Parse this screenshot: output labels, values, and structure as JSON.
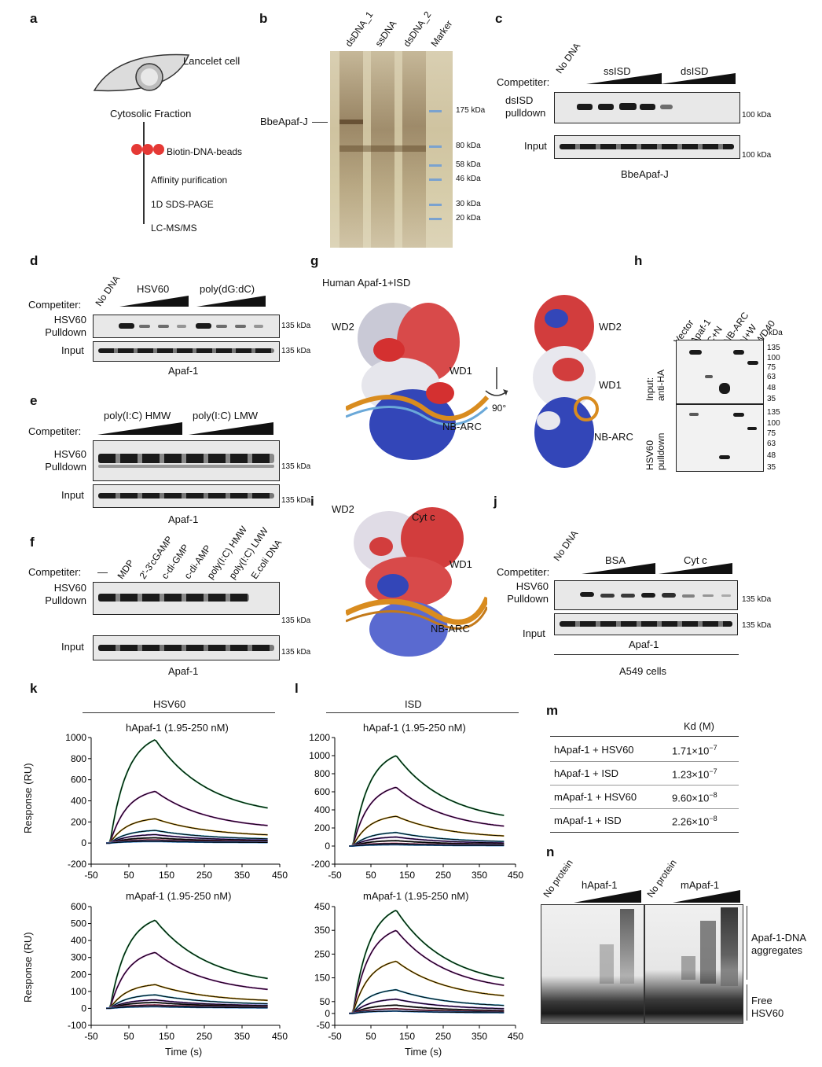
{
  "panels": {
    "a": "a",
    "b": "b",
    "c": "c",
    "d": "d",
    "e": "e",
    "f": "f",
    "g": "g",
    "h": "h",
    "i": "i",
    "j": "j",
    "k": "k",
    "l": "l",
    "m": "m",
    "n": "n"
  },
  "a": {
    "cell_label": "Lancelet cell",
    "fraction": "Cytosolic Fraction",
    "beads": "Biotin-DNA-beads",
    "step1": "Affinity purification",
    "step2": "1D SDS-PAGE",
    "step3": "LC-MS/MS"
  },
  "b": {
    "lanes": [
      "dsDNA_1",
      "ssDNA",
      "dsDNA_2",
      "Marker"
    ],
    "protein": "BbeApaf-J",
    "markers": [
      "175 kDa",
      "80 kDa",
      "58 kDa",
      "46 kDa",
      "30 kDa",
      "20 kDa"
    ]
  },
  "c": {
    "competitor": "Competiter:",
    "lanes": [
      "No DNA",
      "ssISD",
      "dsISD"
    ],
    "row1": "dsISD pulldown",
    "row2": "Input",
    "mw": "100 kDa",
    "protein": "BbeApaf-J"
  },
  "d": {
    "competitor": "Competiter:",
    "lanes": [
      "No DNA",
      "HSV60",
      "poly(dG:dC)"
    ],
    "row1a": "HSV60",
    "row1b": "Pulldown",
    "row2": "Input",
    "mw": "135 kDa",
    "protein": "Apaf-1"
  },
  "e": {
    "competitor": "Competiter:",
    "lanes": [
      "poly(I:C) HMW",
      "poly(I:C) LMW"
    ],
    "row1a": "HSV60",
    "row1b": "Pulldown",
    "row2": "Input",
    "mw": "135 kDa",
    "protein": "Apaf-1"
  },
  "f": {
    "competitor": "Competiter:",
    "lanes": [
      "—",
      "MDP",
      "2'-3'cGAMP",
      "c-di-GMP",
      "c-di-AMP",
      "poly(I:C) HMW",
      "poly(I:C) LMW",
      "E.coli DNA"
    ],
    "row1a": "HSV60",
    "row1b": "Pulldown",
    "row2": "Input",
    "mw": "135 kDa",
    "protein": "Apaf-1"
  },
  "g": {
    "title": "Human Apaf-1+ISD",
    "wd2": "WD2",
    "wd1": "WD1",
    "nbarc": "NB-ARC",
    "rot": "90°"
  },
  "h": {
    "lanes": [
      "Vector",
      "Apaf-1",
      "C+N",
      "NB-ARC",
      "N+W",
      "WD40"
    ],
    "kda": "kDa",
    "row1a": "Input:",
    "row1b": "anti-HA",
    "row2a": "HSV60",
    "row2b": "pulldown",
    "mw_top": [
      "135",
      "100",
      "75",
      "63",
      "48",
      "35"
    ],
    "mw_bot": [
      "135",
      "100",
      "75",
      "63",
      "48",
      "35"
    ]
  },
  "i": {
    "wd2": "WD2",
    "cyt": "Cyt c",
    "wd1": "WD1",
    "nbarc": "NB-ARC"
  },
  "j": {
    "competitor": "Competiter:",
    "lanes": [
      "No DNA",
      "BSA",
      "Cyt c"
    ],
    "row1a": "HSV60",
    "row1b": "Pulldown",
    "row2": "Input",
    "mw": "135 kDa",
    "protein": "Apaf-1",
    "cells": "A549 cells"
  },
  "k": {
    "header": "HSV60",
    "top_title": "hApaf-1 (1.95-250 nM)",
    "bot_title": "mApaf-1 (1.95-250 nM)",
    "ylabel": "Response (RU)",
    "xlabel": "Time (s)"
  },
  "l": {
    "header": "ISD",
    "top_title": "hApaf-1 (1.95-250 nM)",
    "bot_title": "mApaf-1 (1.95-250 nM)",
    "xlabel": "Time (s)"
  },
  "m": {
    "kd_header": "Kd (M)",
    "rows": [
      {
        "pair": "hApaf-1 + HSV60",
        "kd": "1.71×10",
        "exp": "−7"
      },
      {
        "pair": "hApaf-1 + ISD",
        "kd": "1.23×10",
        "exp": "−7"
      },
      {
        "pair": "mApaf-1 + HSV60",
        "kd": "9.60×10",
        "exp": "−8"
      },
      {
        "pair": "mApaf-1 + ISD",
        "kd": "2.26×10",
        "exp": "−8"
      }
    ]
  },
  "n": {
    "lanes": [
      "No protein",
      "hApaf-1",
      "No protein",
      "mApaf-1"
    ],
    "agg1": "Apaf-1-DNA",
    "agg2": "aggregates",
    "free1": "Free",
    "free2": "HSV60"
  },
  "chart_data": [
    {
      "type": "line",
      "title": "hApaf-1 (1.95-250 nM) — HSV60",
      "xlabel": "Time (s)",
      "ylabel": "Response (RU)",
      "xlim": [
        -50,
        450
      ],
      "ylim": [
        -200,
        1000
      ],
      "xticks": [
        -50,
        50,
        150,
        250,
        350,
        450
      ],
      "yticks": [
        -200,
        0,
        200,
        400,
        600,
        800,
        1000
      ],
      "series_peaks": [
        980,
        490,
        230,
        120,
        80,
        50,
        30,
        15
      ]
    },
    {
      "type": "line",
      "title": "hApaf-1 (1.95-250 nM) — ISD",
      "xlabel": "Time (s)",
      "ylabel": "Response (RU)",
      "xlim": [
        -50,
        450
      ],
      "ylim": [
        -200,
        1200
      ],
      "xticks": [
        -50,
        50,
        150,
        250,
        350,
        450
      ],
      "yticks": [
        -200,
        0,
        200,
        400,
        600,
        800,
        1000,
        1200
      ],
      "series_peaks": [
        1000,
        650,
        330,
        150,
        100,
        60,
        30,
        15
      ]
    },
    {
      "type": "line",
      "title": "mApaf-1 (1.95-250 nM) — HSV60",
      "xlabel": "Time (s)",
      "ylabel": "Response (RU)",
      "xlim": [
        -50,
        450
      ],
      "ylim": [
        -100,
        600
      ],
      "xticks": [
        -50,
        50,
        150,
        250,
        350,
        450
      ],
      "yticks": [
        -100,
        0,
        100,
        200,
        300,
        400,
        500,
        600
      ],
      "series_peaks": [
        520,
        330,
        140,
        80,
        50,
        35,
        20,
        10
      ]
    },
    {
      "type": "line",
      "title": "mApaf-1 (1.95-250 nM) — ISD",
      "xlabel": "Time (s)",
      "ylabel": "Response (RU)",
      "xlim": [
        -50,
        450
      ],
      "ylim": [
        -50,
        450
      ],
      "xticks": [
        -50,
        50,
        150,
        250,
        350,
        450
      ],
      "yticks": [
        -50,
        0,
        50,
        150,
        250,
        350,
        450
      ],
      "series_peaks": [
        435,
        350,
        220,
        100,
        60,
        35,
        20,
        10
      ]
    }
  ]
}
